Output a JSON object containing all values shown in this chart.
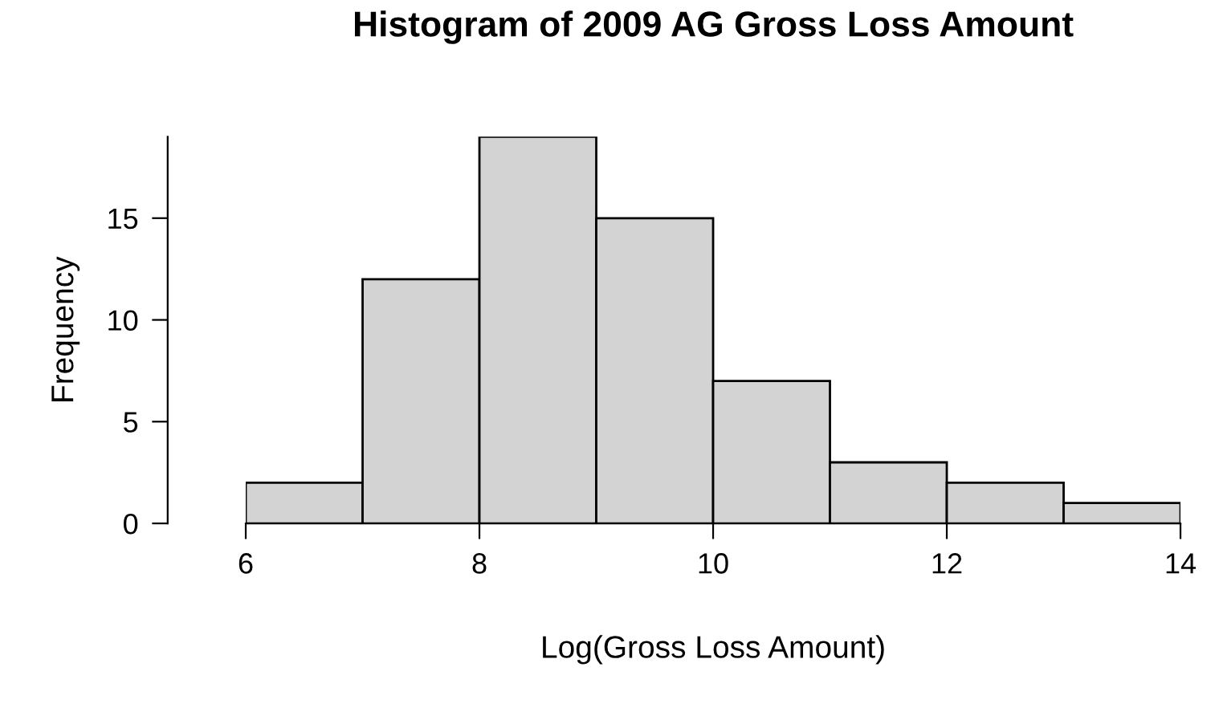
{
  "chart_data": {
    "type": "histogram",
    "title": "Histogram of 2009 AG Gross Loss Amount",
    "xlabel": "Log(Gross Loss Amount)",
    "ylabel": "Frequency",
    "bins": [
      6,
      7,
      8,
      9,
      10,
      11,
      12,
      13,
      14
    ],
    "values": [
      2,
      12,
      19,
      15,
      7,
      3,
      2,
      1
    ],
    "color": "#d3d3d3",
    "xlim": [
      6,
      14
    ],
    "xticks": [
      6,
      8,
      10,
      12,
      14
    ],
    "ylim": [
      0,
      19
    ],
    "yticks": [
      0,
      5,
      10,
      15
    ],
    "grid": false,
    "legend": false
  }
}
